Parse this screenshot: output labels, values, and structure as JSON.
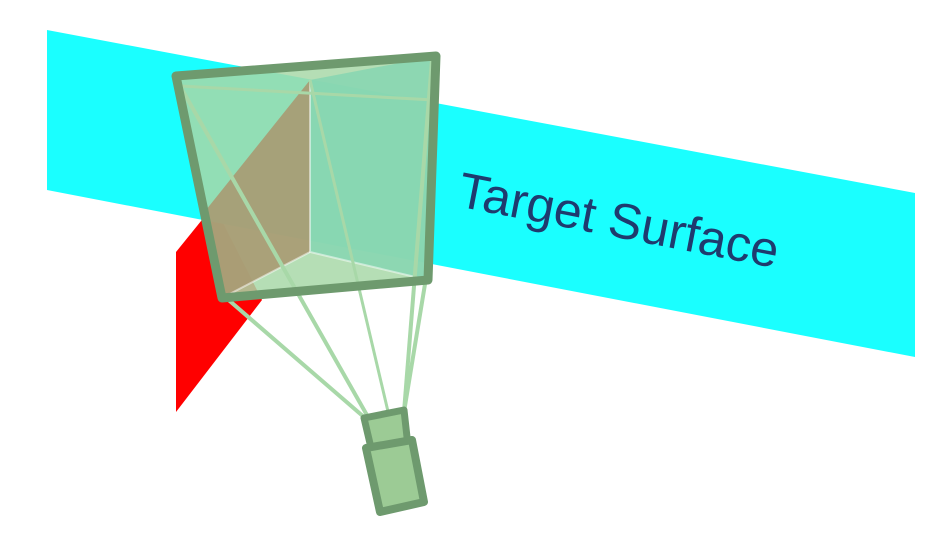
{
  "diagram": {
    "label": "Target Surface",
    "colors": {
      "target_surface": "#1affff",
      "red_plane": "#ff0000",
      "frustum_stroke": "#6e9a6e",
      "frustum_fill": "#a8d8a8",
      "frustum_inner": "#8fd6b0",
      "frustum_brown": "#a89a72",
      "camera_fill": "#9ccb95",
      "label_color": "#1f3b6e"
    }
  }
}
